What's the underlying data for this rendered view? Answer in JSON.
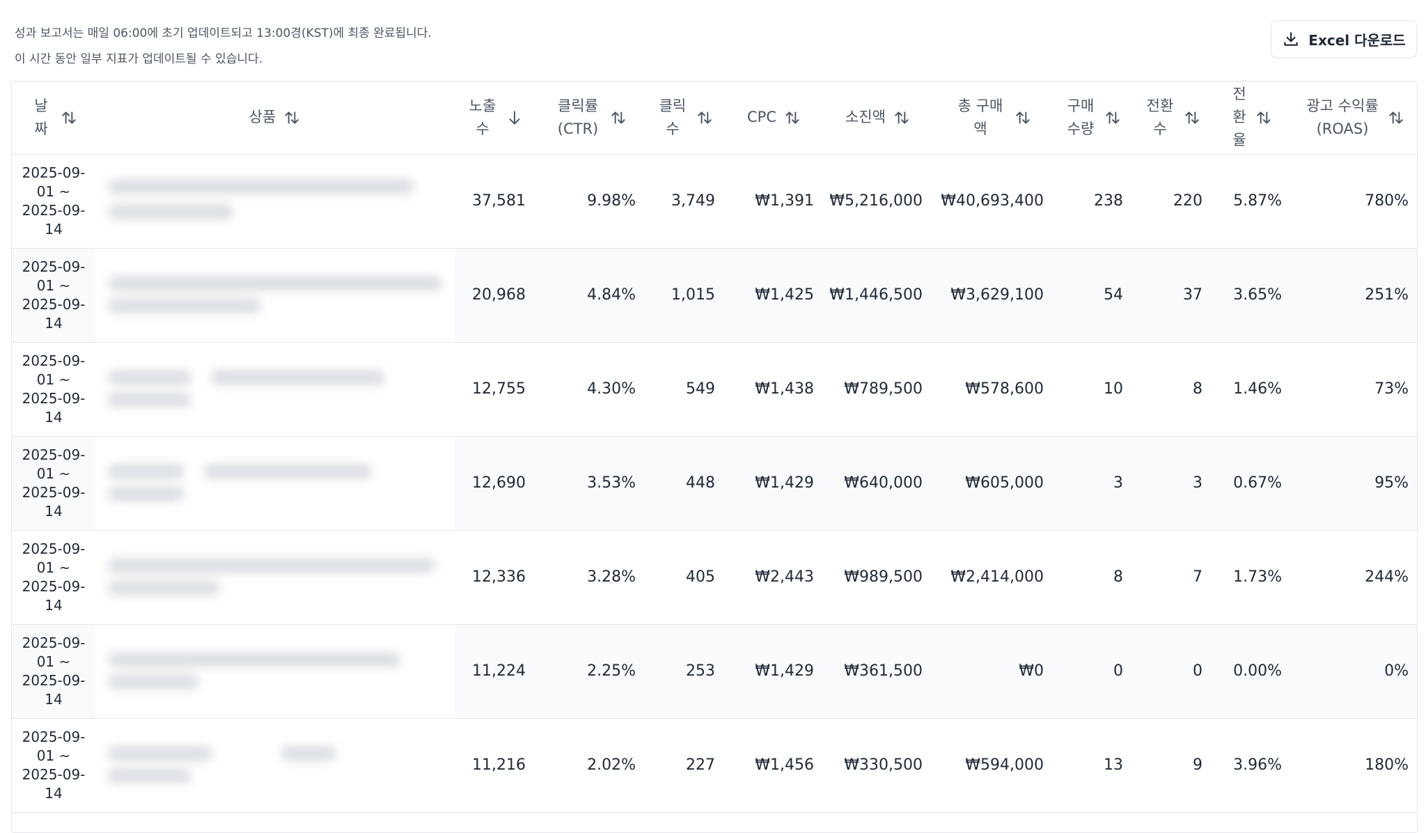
{
  "notice": {
    "line1": "성과 보고서는 매일 06:00에 초기 업데이트되고 13:00경(KST)에 최종 완료됩니다.",
    "line2": "이 시간 동안 일부 지표가 업데이트될 수 있습니다."
  },
  "excel_button": {
    "label": "Excel 다운로드",
    "icon": "download-icon"
  },
  "table": {
    "columns": [
      {
        "key": "date",
        "label": "날짜",
        "sort": "both"
      },
      {
        "key": "product",
        "label": "상품",
        "sort": "both"
      },
      {
        "key": "impressions",
        "label": "노출수",
        "sort": "desc"
      },
      {
        "key": "ctr",
        "label": "클릭률(CTR)",
        "sort": "both"
      },
      {
        "key": "clicks",
        "label": "클릭수",
        "sort": "both"
      },
      {
        "key": "cpc",
        "label": "CPC",
        "sort": "both"
      },
      {
        "key": "spend",
        "label": "소진액",
        "sort": "both"
      },
      {
        "key": "revenue",
        "label": "총 구매액",
        "sort": "both"
      },
      {
        "key": "purchase_qty",
        "label": "구매수량",
        "sort": "both"
      },
      {
        "key": "conversions",
        "label": "전환수",
        "sort": "both"
      },
      {
        "key": "cvr",
        "label": "전환율",
        "sort": "both"
      },
      {
        "key": "roas",
        "label": "광고 수익률(ROAS)",
        "sort": "both"
      }
    ],
    "rows": [
      {
        "date": "2025-09-01 ~ 2025-09-14",
        "impressions": "37,581",
        "ctr": "9.98%",
        "clicks": "3,749",
        "cpc": "₩1,391",
        "spend": "₩5,216,000",
        "revenue": "₩40,693,400",
        "purchase_qty": "238",
        "conversions": "220",
        "cvr": "5.87%",
        "roas": "780%"
      },
      {
        "date": "2025-09-01 ~ 2025-09-14",
        "impressions": "20,968",
        "ctr": "4.84%",
        "clicks": "1,015",
        "cpc": "₩1,425",
        "spend": "₩1,446,500",
        "revenue": "₩3,629,100",
        "purchase_qty": "54",
        "conversions": "37",
        "cvr": "3.65%",
        "roas": "251%"
      },
      {
        "date": "2025-09-01 ~ 2025-09-14",
        "impressions": "12,755",
        "ctr": "4.30%",
        "clicks": "549",
        "cpc": "₩1,438",
        "spend": "₩789,500",
        "revenue": "₩578,600",
        "purchase_qty": "10",
        "conversions": "8",
        "cvr": "1.46%",
        "roas": "73%"
      },
      {
        "date": "2025-09-01 ~ 2025-09-14",
        "impressions": "12,690",
        "ctr": "3.53%",
        "clicks": "448",
        "cpc": "₩1,429",
        "spend": "₩640,000",
        "revenue": "₩605,000",
        "purchase_qty": "3",
        "conversions": "3",
        "cvr": "0.67%",
        "roas": "95%"
      },
      {
        "date": "2025-09-01 ~ 2025-09-14",
        "impressions": "12,336",
        "ctr": "3.28%",
        "clicks": "405",
        "cpc": "₩2,443",
        "spend": "₩989,500",
        "revenue": "₩2,414,000",
        "purchase_qty": "8",
        "conversions": "7",
        "cvr": "1.73%",
        "roas": "244%"
      },
      {
        "date": "2025-09-01 ~ 2025-09-14",
        "impressions": "11,224",
        "ctr": "2.25%",
        "clicks": "253",
        "cpc": "₩1,429",
        "spend": "₩361,500",
        "revenue": "₩0",
        "purchase_qty": "0",
        "conversions": "0",
        "cvr": "0.00%",
        "roas": "0%"
      },
      {
        "date": "2025-09-01 ~ 2025-09-14",
        "impressions": "11,216",
        "ctr": "2.02%",
        "clicks": "227",
        "cpc": "₩1,456",
        "spend": "₩330,500",
        "revenue": "₩594,000",
        "purchase_qty": "13",
        "conversions": "9",
        "cvr": "3.96%",
        "roas": "180%"
      }
    ]
  }
}
